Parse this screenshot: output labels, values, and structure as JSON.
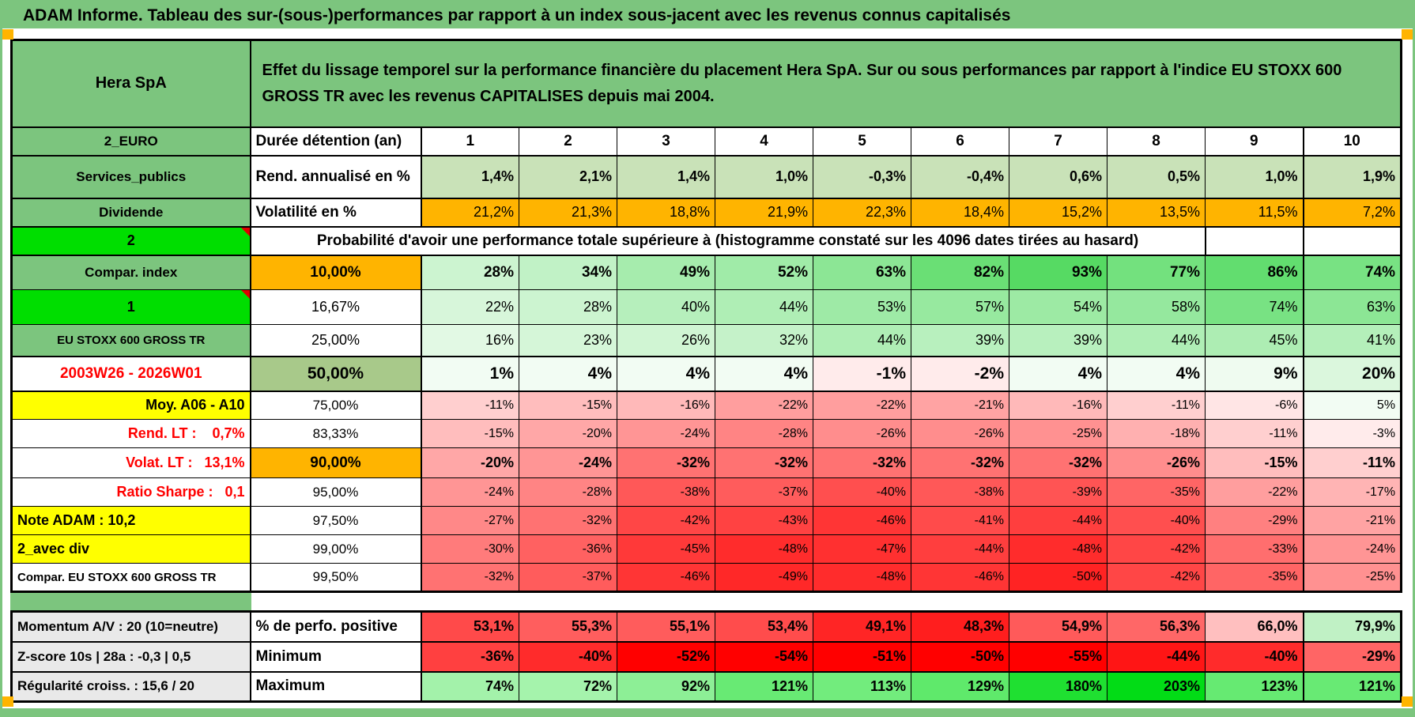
{
  "page_title": "ADAM Informe. Tableau des sur-(sous-)performances par rapport à un index sous-jacent avec les revenus connus capitalisés",
  "header": {
    "name": "Hera SpA",
    "description": "Effet du lissage temporel sur la performance financière du placement Hera SpA. Sur ou sous performances par rapport à l'indice EU STOXX 600 GROSS TR avec les revenus CAPITALISES depuis mai 2004."
  },
  "palette": {
    "band_green": "#7CC57E",
    "lime": "#00DE00",
    "orange": "#FFB400",
    "yellow": "#FFFF00",
    "cell_green_50": "#A8C98A",
    "light_green_row": "#C9E2B8",
    "red": "#FF0000",
    "prob_green": "#00C814",
    "max_green": "#00DC14",
    "gray_label": "#E9E9E9",
    "corner_orange": "#FFB400",
    "comment_triangle_red": "#E00000"
  },
  "grid": {
    "duration_header": {
      "a": "2_EURO",
      "b": "Durée détention (an)",
      "cols": [
        "1",
        "2",
        "3",
        "4",
        "5",
        "6",
        "7",
        "8",
        "9",
        "10"
      ]
    },
    "annualized": {
      "a": "Services_publics",
      "b": "Rend. annualisé en %",
      "values": [
        "1,4%",
        "2,1%",
        "1,4%",
        "1,0%",
        "-0,3%",
        "-0,4%",
        "0,6%",
        "0,5%",
        "1,0%",
        "1,9%"
      ]
    },
    "volatility": {
      "a": "Dividende",
      "b": "Volatilité en %",
      "values": [
        "21,2%",
        "21,3%",
        "18,8%",
        "21,9%",
        "22,3%",
        "18,4%",
        "15,2%",
        "13,5%",
        "11,5%",
        "7,2%"
      ]
    },
    "probability_banner": {
      "a": "2",
      "text": "Probabilité d'avoir une performance totale supérieure à (histogramme constaté sur les 4096 dates tirées au hasard)"
    },
    "probability_rows": [
      {
        "a": "Compar. index",
        "threshold": "10,00%",
        "values_pct": [
          28,
          34,
          49,
          52,
          63,
          82,
          93,
          77,
          86,
          74
        ]
      },
      {
        "a": "1",
        "threshold": "16,67%",
        "values_pct": [
          22,
          28,
          40,
          44,
          53,
          57,
          54,
          58,
          74,
          63
        ]
      },
      {
        "a": "EU STOXX 600 GROSS TR",
        "threshold": "25,00%",
        "values_pct": [
          16,
          23,
          26,
          32,
          44,
          39,
          39,
          44,
          45,
          41
        ]
      },
      {
        "a": "2003W26 - 2026W01",
        "threshold": "50,00%",
        "values_pct": [
          1,
          4,
          4,
          4,
          -1,
          -2,
          4,
          4,
          9,
          20
        ]
      },
      {
        "a": "Moy. A06 - A10",
        "threshold": "75,00%",
        "values_pct": [
          -11,
          -15,
          -16,
          -22,
          -22,
          -21,
          -16,
          -11,
          -6,
          5
        ]
      },
      {
        "a": "Rend. LT :    0,7%",
        "threshold": "83,33%",
        "values_pct": [
          -15,
          -20,
          -24,
          -28,
          -26,
          -26,
          -25,
          -18,
          -11,
          -3
        ]
      },
      {
        "a": "Volat. LT :   13,1%",
        "threshold": "90,00%",
        "values_pct": [
          -20,
          -24,
          -32,
          -32,
          -32,
          -32,
          -32,
          -26,
          -15,
          -11
        ]
      },
      {
        "a": "Ratio Sharpe :   0,1",
        "threshold": "95,00%",
        "values_pct": [
          -24,
          -28,
          -38,
          -37,
          -40,
          -38,
          -39,
          -35,
          -22,
          -17
        ]
      },
      {
        "a": "Note ADAM : 10,2",
        "threshold": "97,50%",
        "values_pct": [
          -27,
          -32,
          -42,
          -43,
          -46,
          -41,
          -44,
          -40,
          -29,
          -21
        ]
      },
      {
        "a": "2_avec div",
        "threshold": "99,00%",
        "values_pct": [
          -30,
          -36,
          -45,
          -48,
          -47,
          -44,
          -48,
          -42,
          -33,
          -24
        ]
      },
      {
        "a": "Compar. EU STOXX 600 GROSS TR",
        "threshold": "99,50%",
        "values_pct": [
          -32,
          -37,
          -46,
          -49,
          -48,
          -46,
          -50,
          -42,
          -35,
          -25
        ]
      }
    ],
    "summary_rows": [
      {
        "a": "Momentum A/V : 20 (10=neutre)",
        "b": "% de perfo. positive",
        "values": [
          "53,1%",
          "55,3%",
          "55,1%",
          "53,4%",
          "49,1%",
          "48,3%",
          "54,9%",
          "56,3%",
          "66,0%",
          "79,9%"
        ],
        "values_num": [
          53.1,
          55.3,
          55.1,
          53.4,
          49.1,
          48.3,
          54.9,
          56.3,
          66.0,
          79.9
        ]
      },
      {
        "a": "Z-score 10s | 28a : -0,3 | 0,5",
        "b": "Minimum",
        "values_pct": [
          -36,
          -40,
          -52,
          -54,
          -51,
          -50,
          -55,
          -44,
          -40,
          -29
        ]
      },
      {
        "a": "Régularité croiss. : 15,6 / 20",
        "b": "Maximum",
        "values_pct": [
          74,
          72,
          92,
          121,
          113,
          129,
          180,
          203,
          123,
          121
        ]
      }
    ]
  }
}
